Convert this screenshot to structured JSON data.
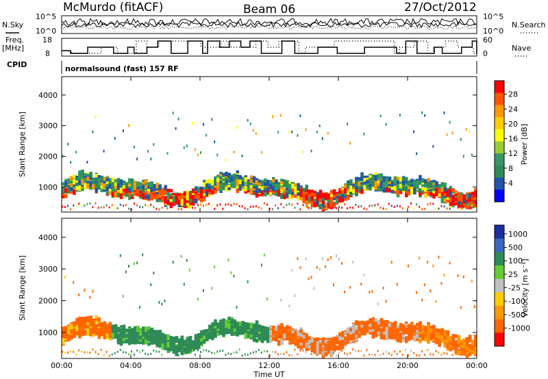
{
  "header": {
    "station": "McMurdo (fitACF)",
    "beam": "Beam 06",
    "date": "27/Oct/2012"
  },
  "strip": {
    "nsky_label": "N.Sky",
    "nsearch_label": "N.Search",
    "freq_label": "Freq.",
    "freq_unit": "[MHz]",
    "nave_label": "Nave",
    "cpid_label": "CPID",
    "cpid_value": "normalsound (fast) 157 RF",
    "noise_left_ticks": [
      "10^5",
      "10^0"
    ],
    "noise_right_ticks": [
      "10^5",
      "10^0"
    ],
    "freq_ticks": [
      "18",
      "8"
    ],
    "nave_ticks": [
      "60",
      "0"
    ]
  },
  "chart_data": [
    {
      "type": "heatmap",
      "title": "",
      "quantity": "Power",
      "ylabel": "Slant Range [km]",
      "xlabel": "Time UT",
      "ylim": [
        180,
        4600
      ],
      "yticks": [
        "4000",
        "3000",
        "2000",
        "1000"
      ],
      "colorbar_label": "Power [dB]",
      "colorbar_ticks": [
        "28",
        "24",
        "20",
        "16",
        "12",
        "8",
        "4"
      ],
      "colorbar_colors": [
        "#ff0000",
        "#ff5500",
        "#ff9900",
        "#ffcc00",
        "#ffff00",
        "#99cc33",
        "#339966",
        "#2e8b57",
        "#2255aa",
        "#0000ff"
      ]
    },
    {
      "type": "heatmap",
      "title": "",
      "quantity": "Velocity",
      "ylabel": "Slant Range [km]",
      "xlabel": "Time UT",
      "ylim": [
        180,
        4600
      ],
      "yticks": [
        "4000",
        "3000",
        "2000",
        "1000"
      ],
      "colorbar_label": "Velocity [m s⁻¹]",
      "colorbar_ticks": [
        "1000",
        "500",
        "100",
        "25",
        "-25",
        "-100",
        "-500",
        "-1000"
      ],
      "colorbar_colors": [
        "#1a2ea0",
        "#3a66c0",
        "#2e8b57",
        "#66cc33",
        "#c0c0c0",
        "#ffcc00",
        "#ff9900",
        "#ff6600",
        "#ff0000"
      ]
    }
  ],
  "x_axis": {
    "ticks": [
      "00:00",
      "04:00",
      "08:00",
      "12:00",
      "16:00",
      "20:00",
      "00:00"
    ],
    "label": "Time UT"
  }
}
